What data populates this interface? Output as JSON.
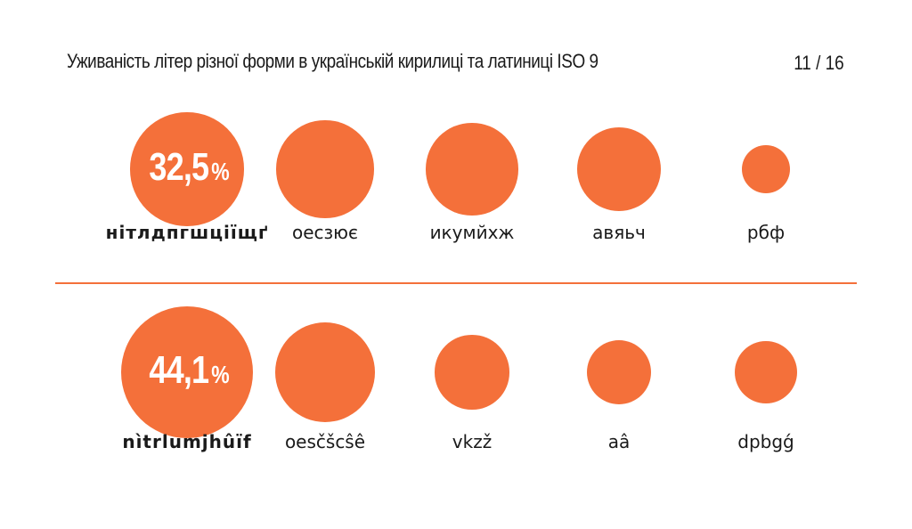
{
  "header": {
    "title": "Уживаність літер різної форми в українській кирилиці та латиниці ISO 9",
    "page": "11 / 16"
  },
  "colors": {
    "accent": "#f4703a",
    "text": "#1a1a1a"
  },
  "chart_data": {
    "type": "bubble",
    "rows": [
      {
        "name": "",
        "highlight_value": "32,5",
        "highlight_unit": "%",
        "categories": [
          {
            "label": "нітлдпгшціїщґ",
            "value": 32.5,
            "bold": true
          },
          {
            "label": "оесзює",
            "value": 24.0,
            "bold": false
          },
          {
            "label": "икумйхж",
            "value": 21.5,
            "bold": false
          },
          {
            "label": "авяьч",
            "value": 18.0,
            "bold": false
          },
          {
            "label": "рбф",
            "value": 6.0,
            "bold": false
          }
        ]
      },
      {
        "name": "",
        "highlight_value": "44,1",
        "highlight_unit": "%",
        "categories": [
          {
            "label": "nìtrlumjhûïf",
            "value": 44.1,
            "bold": true
          },
          {
            "label": "oesčšcŝê",
            "value": 25.5,
            "bold": false
          },
          {
            "label": "vkzž",
            "value": 14.0,
            "bold": false
          },
          {
            "label": "aâ",
            "value": 10.5,
            "bold": false
          },
          {
            "label": "dpbgǵ",
            "value": 10.0,
            "bold": false
          }
        ]
      }
    ]
  }
}
